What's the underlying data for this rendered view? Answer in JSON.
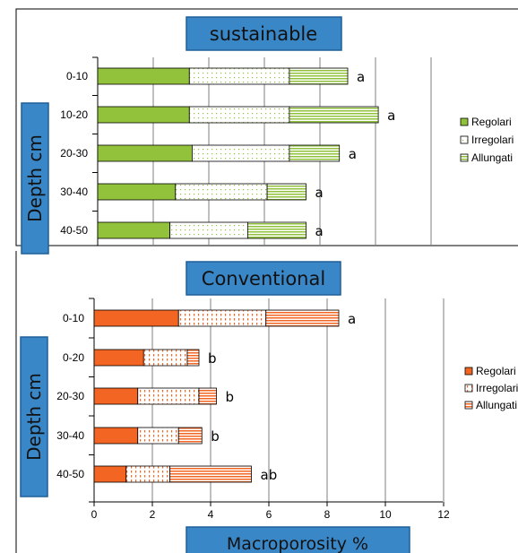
{
  "chart_data": [
    {
      "type": "bar",
      "orientation": "horizontal",
      "stacked": true,
      "title": "sustainable",
      "ylabel": "Depth cm",
      "categories": [
        "0-10",
        "10-20",
        "20-30",
        "30-40",
        "40-50"
      ],
      "series": [
        {
          "name": "Regolari",
          "values": [
            3.3,
            3.3,
            3.4,
            2.8,
            2.6
          ]
        },
        {
          "name": "Irregolari",
          "values": [
            3.6,
            3.6,
            3.5,
            3.3,
            2.8
          ]
        },
        {
          "name": "Allungati",
          "values": [
            2.1,
            3.2,
            1.8,
            1.4,
            2.1
          ]
        }
      ],
      "letters": [
        "a",
        "a",
        "a",
        "a",
        "a"
      ],
      "xlim": [
        0,
        12
      ],
      "grid": true,
      "legend": "right",
      "colors": {
        "base": "#92c13c",
        "edge": "#000000"
      }
    },
    {
      "type": "bar",
      "orientation": "horizontal",
      "stacked": true,
      "title": "Conventional",
      "ylabel": "Depth cm",
      "xlabel": "Macroporosity %",
      "categories": [
        "0-10",
        "0-20",
        "20-30",
        "30-40",
        "40-50"
      ],
      "tick_labels": [
        "0",
        "2",
        "4",
        "6",
        "8",
        "10",
        "12"
      ],
      "series": [
        {
          "name": "Regolari",
          "values": [
            2.9,
            1.7,
            1.5,
            1.5,
            1.1
          ]
        },
        {
          "name": "Irregolari",
          "values": [
            3.0,
            1.5,
            2.1,
            1.4,
            1.5
          ]
        },
        {
          "name": "Allungati",
          "values": [
            2.5,
            0.4,
            0.6,
            0.8,
            2.8
          ]
        }
      ],
      "letters": [
        "a",
        "b",
        "b",
        "b",
        "ab"
      ],
      "xlim": [
        0,
        12
      ],
      "grid": true,
      "legend": "right",
      "colors": {
        "base": "#f26522",
        "edge": "#000000"
      }
    }
  ],
  "legend_labels": [
    "Regolari",
    "Irregolari",
    "Allungati"
  ],
  "colors": {
    "tag_fill": "#3a87c8",
    "tag_border": "#1f5f99",
    "grid": "#7f7f7f"
  }
}
